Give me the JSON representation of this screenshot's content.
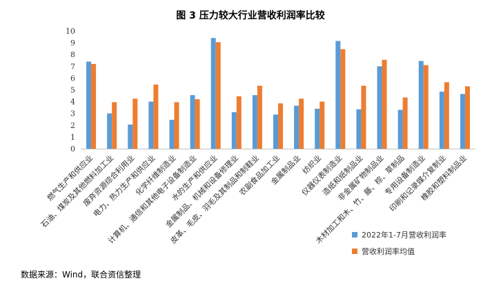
{
  "chart_data": {
    "type": "bar",
    "title": "图 3    压力较大行业营收利润率比较",
    "categories": [
      "燃气生产和供应业",
      "石油、煤炭及其他燃料加工业",
      "废弃资源综合利用业",
      "电力、热力生产和供应业",
      "化学纤维制造业",
      "计算机、通信和其他电子设备制造业",
      "水的生产和供应业",
      "金属制品、机械和设备修理业",
      "皮革、毛皮、羽毛及其制品和制鞋业",
      "农副食品加工业",
      "金属制品业",
      "纺织业",
      "仪器仪表制造业",
      "造纸和纸制品业",
      "非金属矿物制品业",
      "木材加工和木、竹、藤、棕、草制品",
      "专用设备制造业",
      "印刷和记录媒介复制业",
      "橡胶和塑料制品业"
    ],
    "series": [
      {
        "name": "2022年1-7月营收利润率",
        "color": "#5B9BD5",
        "values": [
          7.4,
          3.0,
          2.05,
          4.0,
          2.45,
          4.55,
          9.4,
          3.1,
          4.55,
          2.9,
          3.65,
          3.4,
          9.15,
          3.35,
          7.0,
          3.3,
          7.45,
          4.85,
          4.65
        ]
      },
      {
        "name": "营收利润率均值",
        "color": "#ED7D31",
        "values": [
          7.2,
          3.95,
          4.25,
          5.45,
          3.95,
          4.2,
          9.05,
          4.45,
          5.35,
          3.85,
          4.25,
          4.0,
          8.45,
          5.35,
          7.55,
          4.35,
          7.1,
          5.65,
          5.3
        ]
      }
    ],
    "ylim": [
      0,
      10
    ],
    "yticks": [
      "0",
      "1",
      "2",
      "3",
      "4",
      "5",
      "6",
      "7",
      "8",
      "9",
      "10"
    ],
    "grid": false,
    "legend": "bottom-right"
  },
  "source": "数据来源：Wind，联合资信整理"
}
